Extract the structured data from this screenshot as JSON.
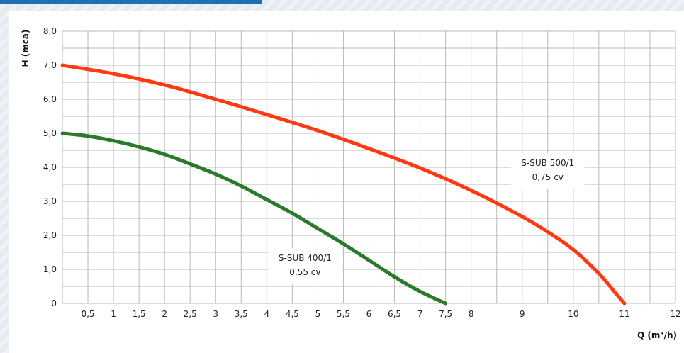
{
  "chart_data": {
    "type": "line",
    "title": "",
    "xlabel": "Q (m³/h)",
    "ylabel": "H (mca)",
    "xlim": [
      0,
      12
    ],
    "ylim": [
      0,
      8
    ],
    "grid": true,
    "x_ticks": [
      {
        "v": 0.5,
        "label": "0,5"
      },
      {
        "v": 1,
        "label": "1"
      },
      {
        "v": 1.5,
        "label": "1,5"
      },
      {
        "v": 2,
        "label": "2"
      },
      {
        "v": 2.5,
        "label": "2,5"
      },
      {
        "v": 3,
        "label": "3"
      },
      {
        "v": 3.5,
        "label": "3,5"
      },
      {
        "v": 4,
        "label": "4"
      },
      {
        "v": 4.5,
        "label": "4,5"
      },
      {
        "v": 5,
        "label": "5"
      },
      {
        "v": 5.5,
        "label": "5,5"
      },
      {
        "v": 6,
        "label": "6"
      },
      {
        "v": 6.5,
        "label": "6,5"
      },
      {
        "v": 7,
        "label": "7"
      },
      {
        "v": 7.5,
        "label": "7,5"
      },
      {
        "v": 8,
        "label": "8"
      },
      {
        "v": 9,
        "label": "9"
      },
      {
        "v": 10,
        "label": "10"
      },
      {
        "v": 11,
        "label": "11"
      },
      {
        "v": 12,
        "label": "12"
      }
    ],
    "y_ticks": [
      {
        "v": 0,
        "label": "0"
      },
      {
        "v": 1,
        "label": "1,0"
      },
      {
        "v": 2,
        "label": "2,0"
      },
      {
        "v": 3,
        "label": "3,0"
      },
      {
        "v": 4,
        "label": "4,0"
      },
      {
        "v": 5,
        "label": "5,0"
      },
      {
        "v": 6,
        "label": "6,0"
      },
      {
        "v": 7,
        "label": "7,0"
      },
      {
        "v": 8,
        "label": "8,0"
      }
    ],
    "series": [
      {
        "name": "S-SUB 500/1",
        "sublabel": "0,75 cv",
        "color": "#ff3a12",
        "points": [
          [
            0,
            7.0
          ],
          [
            1,
            6.75
          ],
          [
            2,
            6.42
          ],
          [
            3,
            6.0
          ],
          [
            4,
            5.55
          ],
          [
            5,
            5.08
          ],
          [
            6,
            4.55
          ],
          [
            7,
            3.98
          ],
          [
            8,
            3.32
          ],
          [
            9,
            2.55
          ],
          [
            9.5,
            2.1
          ],
          [
            10,
            1.58
          ],
          [
            10.5,
            0.88
          ],
          [
            10.8,
            0.35
          ],
          [
            11,
            0.0
          ]
        ]
      },
      {
        "name": "S-SUB 400/1",
        "sublabel": "0,55 cv",
        "color": "#2b7a2b",
        "points": [
          [
            0,
            5.0
          ],
          [
            0.5,
            4.92
          ],
          [
            1,
            4.78
          ],
          [
            1.5,
            4.6
          ],
          [
            2,
            4.38
          ],
          [
            2.5,
            4.1
          ],
          [
            3,
            3.8
          ],
          [
            3.5,
            3.45
          ],
          [
            4,
            3.05
          ],
          [
            4.5,
            2.65
          ],
          [
            5,
            2.2
          ],
          [
            5.5,
            1.75
          ],
          [
            6,
            1.27
          ],
          [
            6.5,
            0.78
          ],
          [
            7,
            0.35
          ],
          [
            7.5,
            0.0
          ]
        ]
      }
    ]
  }
}
